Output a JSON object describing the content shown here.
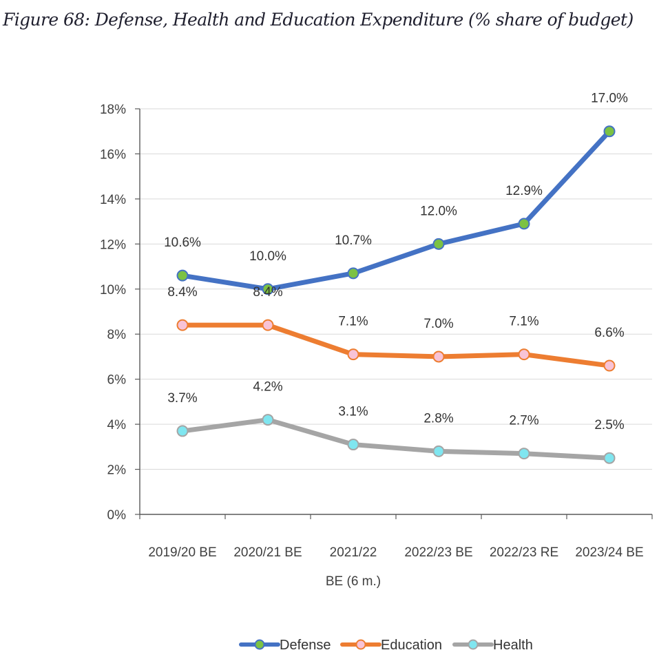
{
  "chart_data": {
    "type": "line",
    "title": "Figure 68: Defense, Health and Education Expenditure (%  share of budget)",
    "categories": [
      [
        "2019/20 BE"
      ],
      [
        "2020/21 BE"
      ],
      [
        "2021/22",
        "BE (6 m.)"
      ],
      [
        "2022/23 BE"
      ],
      [
        "2022/23 RE"
      ],
      [
        "2023/24 BE"
      ]
    ],
    "ylim": [
      0,
      18
    ],
    "yticks": [
      0,
      2,
      4,
      6,
      8,
      10,
      12,
      14,
      16,
      18
    ],
    "ytick_suffix": "%",
    "grid": true,
    "legend_position": "bottom",
    "series": [
      {
        "name": "Defense",
        "line_color": "#4472C4",
        "marker_color": "#7CC243",
        "values": [
          10.6,
          10.0,
          10.7,
          12.0,
          12.9,
          17.0
        ],
        "labels": [
          "10.6%",
          "10.0%",
          "10.7%",
          "12.0%",
          "12.9%",
          "17.0%"
        ]
      },
      {
        "name": "Education",
        "line_color": "#ED7D31",
        "marker_color": "#F8C3D6",
        "values": [
          8.4,
          8.4,
          7.1,
          7.0,
          7.1,
          6.6
        ],
        "labels": [
          "8.4%",
          "8.4%",
          "7.1%",
          "7.0%",
          "7.1%",
          "6.6%"
        ]
      },
      {
        "name": "Health",
        "line_color": "#A5A5A5",
        "marker_color": "#7FE6F0",
        "values": [
          3.7,
          4.2,
          3.1,
          2.8,
          2.7,
          2.5
        ],
        "labels": [
          "3.7%",
          "4.2%",
          "3.1%",
          "2.8%",
          "2.7%",
          "2.5%"
        ]
      }
    ]
  }
}
